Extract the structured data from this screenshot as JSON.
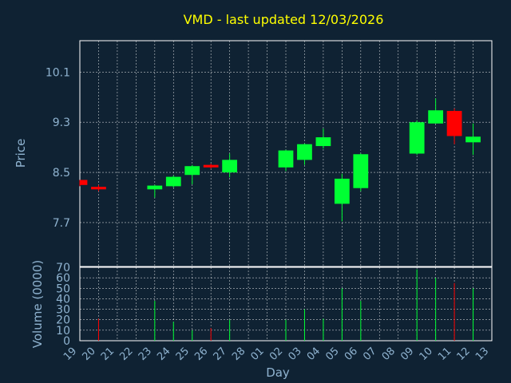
{
  "chart_data": {
    "type": "candlestick",
    "title": "VMD - last updated 12/03/2026",
    "xlabel": "Day",
    "price_ylabel": "Price",
    "volume_ylabel": "Volume (0000)",
    "price_ylim": [
      7.0,
      10.6
    ],
    "price_ticks": [
      "7.7",
      "8.5",
      "9.3",
      "10.1"
    ],
    "volume_ylim": [
      0,
      70
    ],
    "volume_ticks": [
      "0",
      "10",
      "20",
      "30",
      "40",
      "50",
      "60",
      "70"
    ],
    "x_ticks": [
      "19",
      "20",
      "21",
      "22",
      "23",
      "24",
      "25",
      "26",
      "27",
      "28",
      "01",
      "02",
      "03",
      "04",
      "05",
      "06",
      "07",
      "08",
      "09",
      "10",
      "11",
      "12",
      "13"
    ],
    "grid": true,
    "colors": {
      "background": "#0f2233",
      "title": "#ffff00",
      "axis_text": "#8fb3d0",
      "up": "#00ff33",
      "down": "#ff0000",
      "grid": "#ffffff"
    },
    "candles": [
      {
        "day": "19",
        "open": 8.38,
        "close": 8.3,
        "high": 8.38,
        "low": 8.28,
        "volume": 0
      },
      {
        "day": "20",
        "open": 8.27,
        "close": 8.23,
        "high": 8.3,
        "low": 8.2,
        "volume": 21
      },
      {
        "day": "23",
        "open": 8.23,
        "close": 8.29,
        "high": 8.3,
        "low": 8.1,
        "volume": 38
      },
      {
        "day": "24",
        "open": 8.28,
        "close": 8.43,
        "high": 8.45,
        "low": 8.26,
        "volume": 18
      },
      {
        "day": "25",
        "open": 8.46,
        "close": 8.6,
        "high": 8.62,
        "low": 8.31,
        "volume": 10
      },
      {
        "day": "26",
        "open": 8.62,
        "close": 8.58,
        "high": 8.64,
        "low": 8.56,
        "volume": 12
      },
      {
        "day": "27",
        "open": 8.5,
        "close": 8.7,
        "high": 8.8,
        "low": 8.42,
        "volume": 20
      },
      {
        "day": "02",
        "open": 8.58,
        "close": 8.85,
        "high": 8.86,
        "low": 8.52,
        "volume": 20
      },
      {
        "day": "03",
        "open": 8.7,
        "close": 8.95,
        "high": 8.96,
        "low": 8.62,
        "volume": 30
      },
      {
        "day": "04",
        "open": 8.92,
        "close": 9.06,
        "high": 9.2,
        "low": 8.88,
        "volume": 21
      },
      {
        "day": "05",
        "open": 8.0,
        "close": 8.4,
        "high": 8.48,
        "low": 7.72,
        "volume": 50
      },
      {
        "day": "06",
        "open": 8.25,
        "close": 8.79,
        "high": 8.8,
        "low": 8.2,
        "volume": 38
      },
      {
        "day": "09",
        "open": 8.8,
        "close": 9.3,
        "high": 9.33,
        "low": 8.78,
        "volume": 68
      },
      {
        "day": "10",
        "open": 9.28,
        "close": 9.49,
        "high": 9.68,
        "low": 9.28,
        "volume": 60
      },
      {
        "day": "11",
        "open": 9.48,
        "close": 9.08,
        "high": 9.52,
        "low": 8.95,
        "volume": 55
      },
      {
        "day": "12",
        "open": 8.98,
        "close": 9.07,
        "high": 9.28,
        "low": 8.78,
        "volume": 50
      }
    ]
  }
}
